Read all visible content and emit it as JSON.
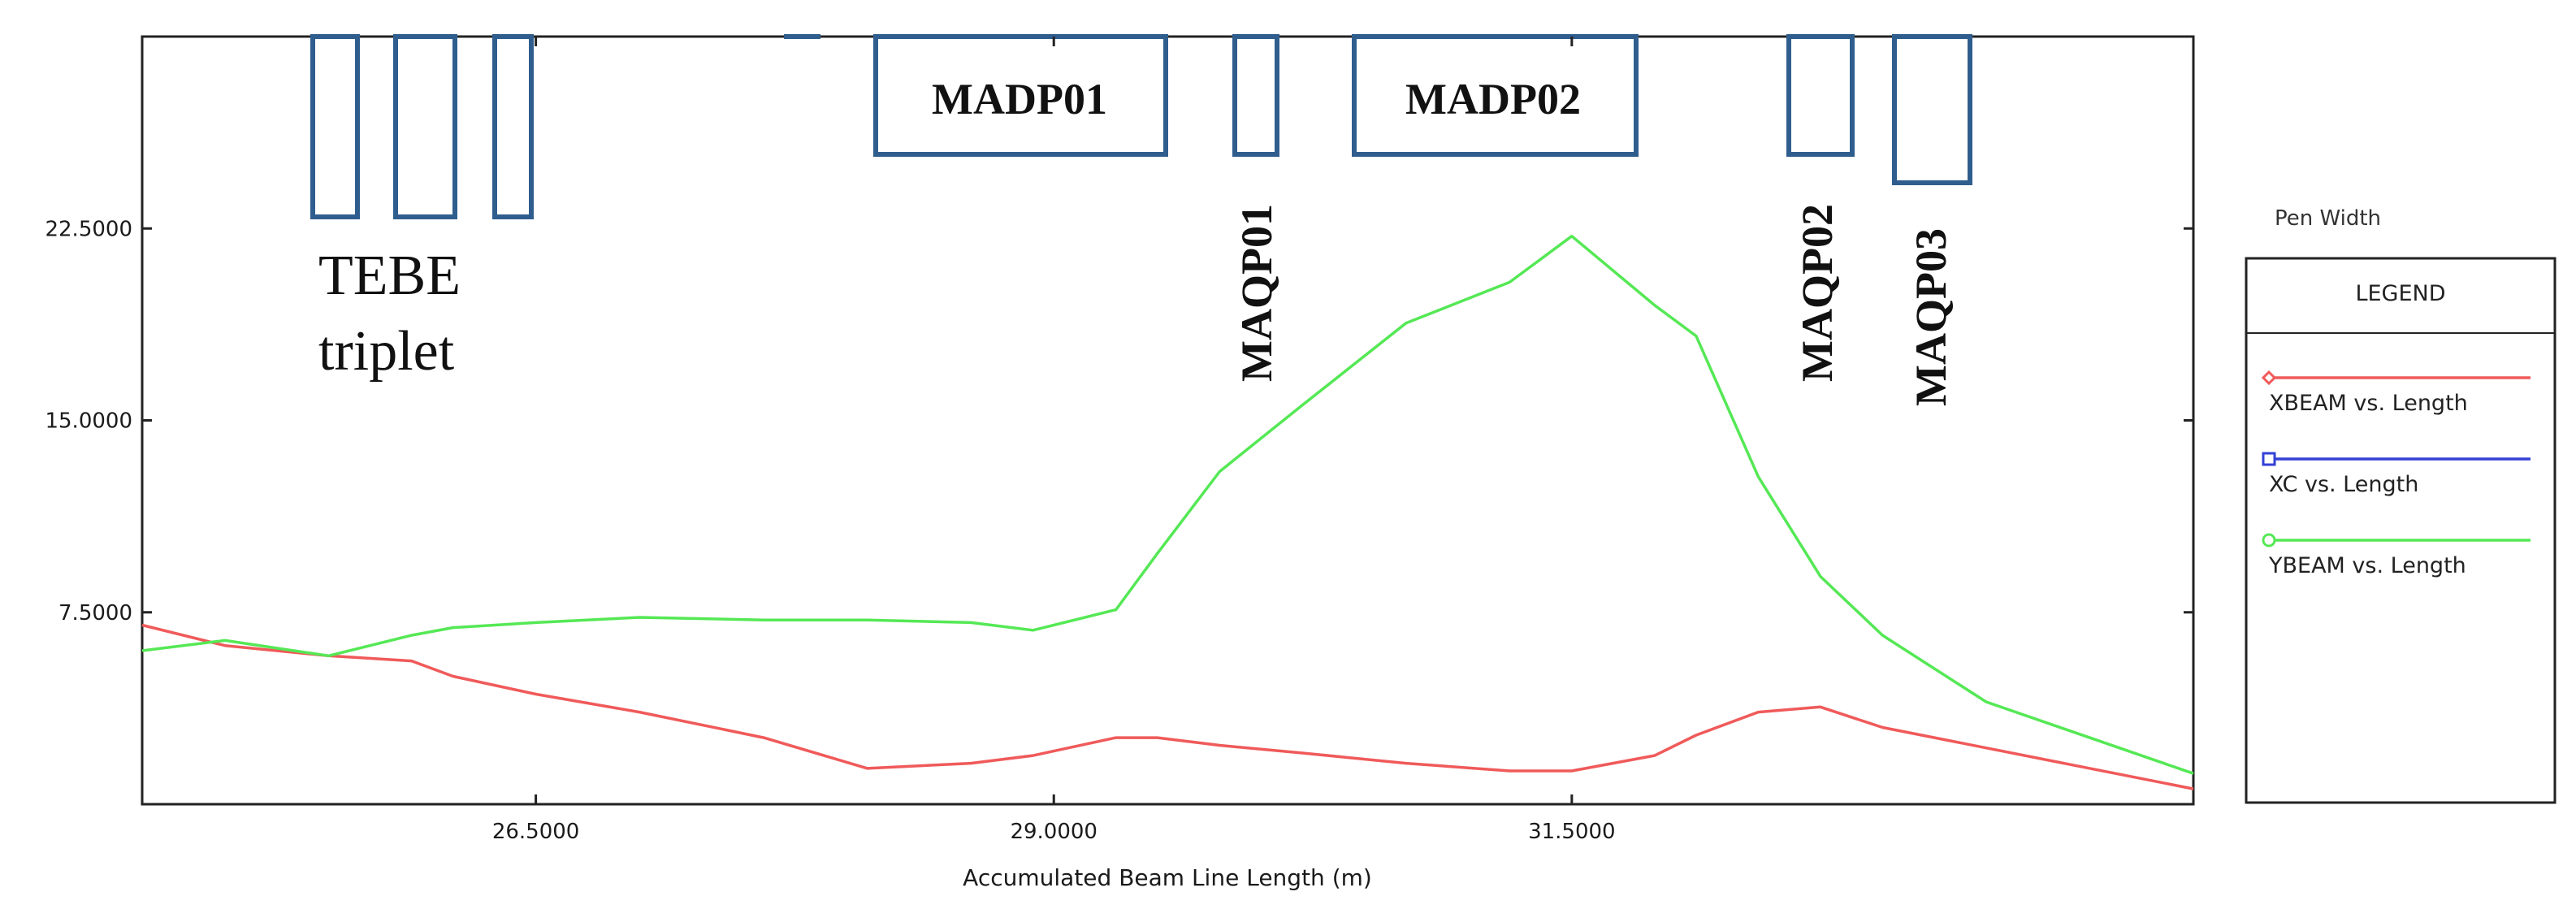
{
  "chart_data": {
    "type": "line",
    "xlabel": "Accumulated Beam Line Length (m)",
    "x_ticks": [
      "26.5000",
      "29.0000",
      "31.5000"
    ],
    "x_tick_values": [
      26.5,
      29.0,
      31.5
    ],
    "y_ticks": [
      "7.5000",
      "15.0000",
      "22.5000"
    ],
    "y_tick_values": [
      7.5,
      15.0,
      22.5
    ],
    "xlim": [
      24.6,
      34.5
    ],
    "ylim": [
      0,
      30
    ],
    "grid": false,
    "legend_position": "right",
    "series": [
      {
        "name": "XBEAM vs. Length",
        "color": "#f05a5a",
        "marker": "diamond",
        "x": [
          24.6,
          25.0,
          25.5,
          25.9,
          26.1,
          26.5,
          27.0,
          27.6,
          28.1,
          28.6,
          28.9,
          29.3,
          29.5,
          29.8,
          30.2,
          30.7,
          31.2,
          31.5,
          31.9,
          32.1,
          32.4,
          32.7,
          33.0,
          33.5,
          34.5
        ],
        "y": [
          7.0,
          6.2,
          5.8,
          5.6,
          5.0,
          4.3,
          3.6,
          2.6,
          1.4,
          1.6,
          1.9,
          2.6,
          2.6,
          2.3,
          2.0,
          1.6,
          1.3,
          1.3,
          1.9,
          2.7,
          3.6,
          3.8,
          3.0,
          2.2,
          0.6
        ]
      },
      {
        "name": "XC vs. Length",
        "color": "#3340d6",
        "marker": "square",
        "x": [],
        "y": []
      },
      {
        "name": "YBEAM vs. Length",
        "color": "#55e855",
        "marker": "circle",
        "x": [
          24.6,
          25.0,
          25.5,
          25.9,
          26.1,
          26.5,
          27.0,
          27.6,
          28.1,
          28.6,
          28.9,
          29.3,
          29.5,
          29.8,
          30.2,
          30.7,
          31.2,
          31.5,
          31.9,
          32.1,
          32.4,
          32.7,
          33.0,
          33.5,
          34.5
        ],
        "y": [
          6.0,
          6.4,
          5.8,
          6.6,
          6.9,
          7.1,
          7.3,
          7.2,
          7.2,
          7.1,
          6.8,
          7.6,
          9.8,
          13.0,
          15.6,
          18.8,
          20.4,
          22.2,
          19.5,
          18.3,
          12.8,
          8.9,
          6.6,
          4.0,
          1.2
        ]
      }
    ],
    "elements": [
      {
        "label": "TEBE triplet",
        "kind": "quad-triplet"
      },
      {
        "label": "MADP01",
        "kind": "dipole"
      },
      {
        "label": "MAQP01",
        "kind": "quadrupole"
      },
      {
        "label": "MADP02",
        "kind": "dipole"
      },
      {
        "label": "MAQP02",
        "kind": "quadrupole"
      },
      {
        "label": "MAQP03",
        "kind": "quadrupole"
      }
    ]
  },
  "labels": {
    "tebe_line1": "TEBE",
    "tebe_line2": "triplet",
    "madp01": "MADP01",
    "madp02": "MADP02",
    "maqp01": "MAQP01",
    "maqp02": "MAQP02",
    "maqp03": "MAQP03"
  },
  "legend": {
    "pen_width": "Pen Width",
    "title": "LEGEND",
    "entries": [
      "XBEAM vs. Length",
      "XC vs. Length",
      "YBEAM vs. Length"
    ]
  },
  "colors": {
    "magnet_box": "#2f5e8e",
    "axis": "#222222"
  }
}
